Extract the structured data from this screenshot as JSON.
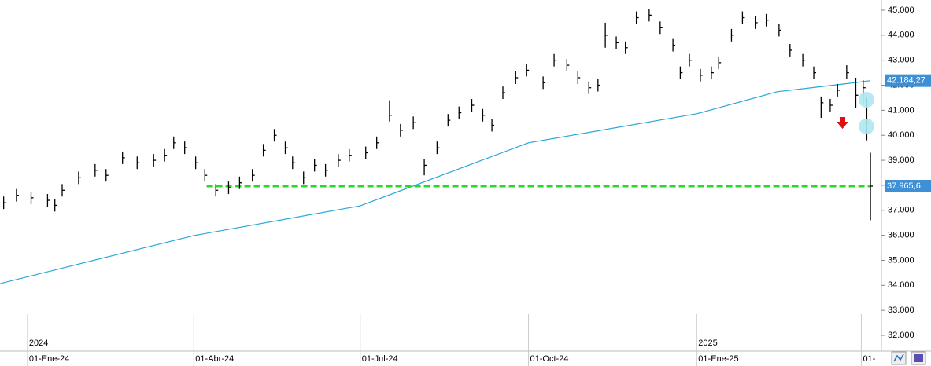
{
  "chart_data": {
    "type": "ohlc",
    "x": [
      -13,
      -6,
      2,
      11,
      15,
      19,
      28,
      37,
      43,
      52,
      60,
      69,
      75,
      80,
      86,
      92,
      97,
      103,
      110,
      116,
      123,
      129,
      135,
      141,
      145,
      151,
      157,
      163,
      170,
      176,
      185,
      191,
      198,
      204,
      211,
      217,
      224,
      230,
      236,
      243,
      249,
      254,
      260,
      267,
      273,
      282,
      288,
      295,
      301,
      307,
      312,
      316,
      322,
      327,
      333,
      340,
      346,
      353,
      357,
      362,
      368,
      374,
      378,
      385,
      391,
      398,
      404,
      411,
      417,
      424,
      430,
      434,
      439,
      443,
      448,
      453,
      457,
      459,
      461
    ],
    "high": [
      37550,
      37850,
      37750,
      37650,
      37450,
      38050,
      38550,
      38850,
      38650,
      39350,
      39150,
      39250,
      39450,
      39950,
      39750,
      39150,
      38650,
      38050,
      38150,
      38350,
      38650,
      39650,
      40250,
      39750,
      39150,
      38550,
      39050,
      38850,
      39250,
      39450,
      39550,
      39950,
      41400,
      40450,
      40750,
      39050,
      39750,
      40850,
      41150,
      41450,
      41050,
      40650,
      41950,
      42550,
      42850,
      42350,
      43250,
      43050,
      42550,
      42150,
      42250,
      44500,
      43950,
      43750,
      44950,
      45050,
      44550,
      43850,
      42750,
      43250,
      42650,
      42750,
      43150,
      44250,
      44950,
      44750,
      44850,
      44450,
      43650,
      43250,
      42750,
      41550,
      41450,
      42050,
      42800,
      42300,
      42200,
      41500,
      39300
    ],
    "low": [
      37050,
      37350,
      37250,
      37150,
      36950,
      37550,
      38050,
      38350,
      38150,
      38850,
      38650,
      38750,
      38950,
      39450,
      39250,
      38650,
      38150,
      37550,
      37650,
      37850,
      38150,
      39150,
      39750,
      39250,
      38650,
      38050,
      38550,
      38350,
      38750,
      38950,
      39050,
      39450,
      40550,
      39950,
      40250,
      38400,
      39250,
      40350,
      40650,
      40950,
      40550,
      40150,
      41450,
      42050,
      42350,
      41850,
      42750,
      42550,
      42050,
      41650,
      41750,
      43500,
      43450,
      43250,
      44450,
      44550,
      44050,
      43350,
      42250,
      42750,
      42150,
      42250,
      42650,
      43750,
      44450,
      44250,
      44350,
      43950,
      43150,
      42750,
      42250,
      40700,
      40950,
      41550,
      42250,
      41100,
      41300,
      39800,
      36600
    ],
    "close": [
      37300,
      37600,
      37500,
      37400,
      37200,
      37800,
      38300,
      38600,
      38400,
      39100,
      38900,
      39000,
      39200,
      39700,
      39500,
      38900,
      38400,
      37800,
      37900,
      38100,
      38400,
      39400,
      40000,
      39500,
      38900,
      38300,
      38800,
      38600,
      39000,
      39200,
      39300,
      39700,
      40800,
      40200,
      40500,
      38800,
      39500,
      40600,
      40900,
      41200,
      40800,
      40400,
      41700,
      42300,
      42600,
      42100,
      43000,
      42800,
      42300,
      41900,
      42000,
      44000,
      43700,
      43500,
      44700,
      44800,
      44300,
      43600,
      42500,
      43000,
      42400,
      42500,
      42900,
      44000,
      44700,
      44500,
      44600,
      44200,
      43400,
      43000,
      42500,
      41300,
      41200,
      41800,
      42500,
      41600,
      41900,
      40500,
      37966
    ],
    "color": "#000000",
    "ma": {
      "color": "#29a8d8",
      "x": [
        -15,
        91,
        182,
        274,
        366,
        410,
        452,
        461
      ],
      "values": [
        34070,
        35990,
        37180,
        39700,
        40860,
        41740,
        42100,
        42184.27
      ]
    },
    "support": {
      "color": "#22dd22",
      "x": [
        98,
        461
      ],
      "value": 37965.6
    },
    "price_labels": [
      {
        "value": 42184.27,
        "label": "42.184,27"
      },
      {
        "value": 37965.6,
        "label": "37.965,6"
      }
    ],
    "xlim": [
      -15,
      467
    ],
    "ylim": [
      31372,
      45408
    ],
    "yticks": [
      {
        "value": 32000,
        "label": "32.000"
      },
      {
        "value": 33000,
        "label": "33.000"
      },
      {
        "value": 34000,
        "label": "34.000"
      },
      {
        "value": 35000,
        "label": "35.000"
      },
      {
        "value": 36000,
        "label": "36.000"
      },
      {
        "value": 37000,
        "label": "37.000"
      },
      {
        "value": 38000,
        "label": "38.000"
      },
      {
        "value": 39000,
        "label": "39.000"
      },
      {
        "value": 40000,
        "label": "40.000"
      },
      {
        "value": 41000,
        "label": "41.000"
      },
      {
        "value": 42000,
        "label": "42.000"
      },
      {
        "value": 43000,
        "label": "43.000"
      },
      {
        "value": 44000,
        "label": "44.000"
      },
      {
        "value": 45000,
        "label": "45.000"
      }
    ],
    "xticks": [
      {
        "value": 0,
        "label": "01-Ene-24"
      },
      {
        "value": 91,
        "label": "01-Abr-24"
      },
      {
        "value": 182,
        "label": "01-Jul-24"
      },
      {
        "value": 274,
        "label": "01-Oct-24"
      },
      {
        "value": 366,
        "label": "01-Ene-25"
      },
      {
        "value": 456,
        "label": "01-"
      }
    ],
    "year_labels": [
      {
        "value": 0,
        "label": "2024"
      },
      {
        "value": 366,
        "label": "2025"
      }
    ]
  }
}
